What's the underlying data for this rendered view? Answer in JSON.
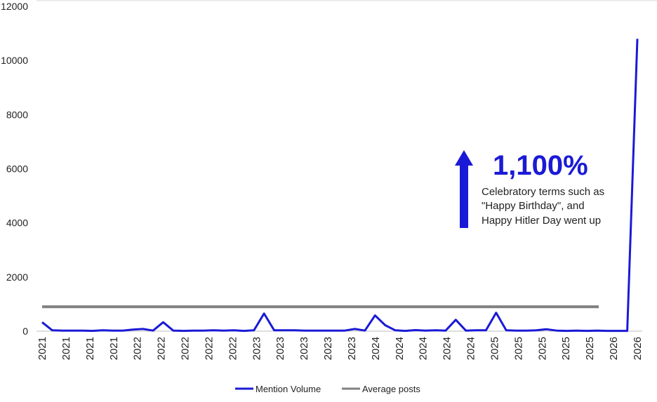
{
  "chart_data": {
    "type": "line",
    "title": "",
    "xlabel": "",
    "ylabel": "",
    "ylim": [
      0,
      12000
    ],
    "yticks": [
      0,
      2000,
      4000,
      6000,
      8000,
      10000,
      12000
    ],
    "x_tick_labels": [
      "2021",
      "2021",
      "2021",
      "2021",
      "2022",
      "2022",
      "2022",
      "2022",
      "2022",
      "2023",
      "2023",
      "2023",
      "2023",
      "2023",
      "2024",
      "2024",
      "2024",
      "2024",
      "2024",
      "2025",
      "2025",
      "2025",
      "2025",
      "2025",
      "2026",
      "2026"
    ],
    "series": [
      {
        "name": "Mention Volume",
        "color": "#1a1ad6",
        "values": [
          330,
          30,
          20,
          20,
          20,
          10,
          30,
          20,
          20,
          60,
          80,
          20,
          330,
          20,
          10,
          20,
          20,
          30,
          20,
          30,
          10,
          30,
          650,
          30,
          30,
          30,
          20,
          20,
          20,
          20,
          20,
          80,
          20,
          580,
          220,
          30,
          10,
          40,
          20,
          30,
          20,
          420,
          20,
          30,
          30,
          680,
          30,
          20,
          20,
          30,
          70,
          20,
          10,
          20,
          10,
          20,
          10,
          10,
          10,
          10800
        ]
      },
      {
        "name": "Average posts",
        "color": "#808080",
        "values_constant": 900
      }
    ],
    "annotation": {
      "headline": "1,100%",
      "lines": [
        "Celebratory terms such as",
        "\"Happy Birthday\", and",
        "Happy Hitler Day went up"
      ],
      "arrow": "up",
      "arrow_color": "#1a1ad6"
    },
    "legend_position": "bottom"
  }
}
